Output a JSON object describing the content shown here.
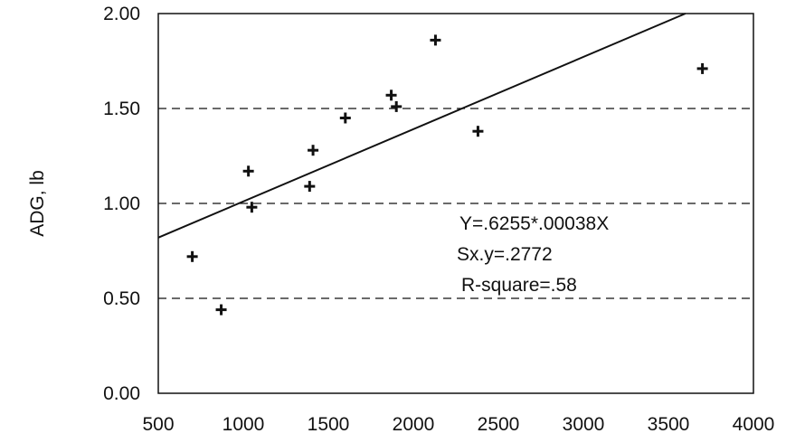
{
  "chart_data": {
    "type": "scatter",
    "title": "",
    "xlabel": "",
    "ylabel": "ADG, lb",
    "xlim": [
      500,
      4000
    ],
    "ylim": [
      0.0,
      2.0
    ],
    "x_ticks": [
      "500",
      "1000",
      "1500",
      "2000",
      "2500",
      "3000",
      "3500",
      "4000"
    ],
    "y_ticks": [
      "0.00",
      "0.50",
      "1.00",
      "1.50",
      "2.00"
    ],
    "y_gridlines": [
      0.5,
      1.0,
      1.5
    ],
    "grid": "horizontal dashed",
    "points": [
      {
        "x": 700,
        "y": 0.72
      },
      {
        "x": 870,
        "y": 0.44
      },
      {
        "x": 1030,
        "y": 1.17
      },
      {
        "x": 1050,
        "y": 0.98
      },
      {
        "x": 1390,
        "y": 1.09
      },
      {
        "x": 1410,
        "y": 1.28
      },
      {
        "x": 1600,
        "y": 1.45
      },
      {
        "x": 1870,
        "y": 1.57
      },
      {
        "x": 1900,
        "y": 1.51
      },
      {
        "x": 2130,
        "y": 1.86
      },
      {
        "x": 2380,
        "y": 1.38
      },
      {
        "x": 3700,
        "y": 1.71
      }
    ],
    "trend_line": {
      "x": [
        500,
        3600
      ],
      "y": [
        0.82,
        2.0
      ]
    },
    "annotations": [
      "Y=.6255*.00038X",
      "Sx.y=.2772",
      "R-square=.58"
    ]
  }
}
